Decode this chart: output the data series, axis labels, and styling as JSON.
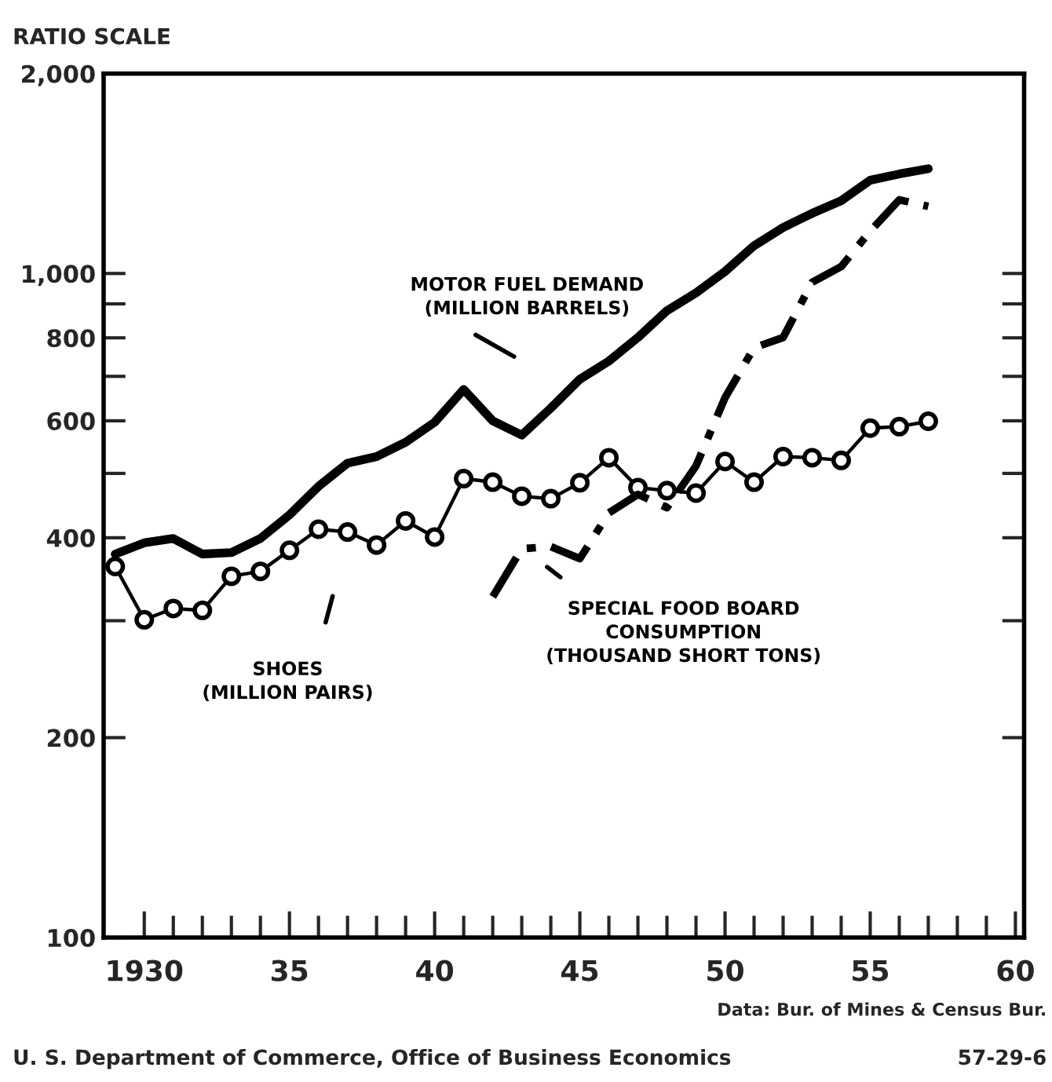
{
  "chart_data": {
    "type": "line",
    "ylabel": "RATIO SCALE",
    "log": "y",
    "grid": false,
    "legend": false,
    "xlim": [
      1928.6,
      1960.3
    ],
    "xticks": [
      {
        "value": 1930,
        "label": "1930"
      },
      {
        "value": 1931,
        "label": null
      },
      {
        "value": 1932,
        "label": null
      },
      {
        "value": 1933,
        "label": null
      },
      {
        "value": 1934,
        "label": null
      },
      {
        "value": 1935,
        "label": "35"
      },
      {
        "value": 1936,
        "label": null
      },
      {
        "value": 1937,
        "label": null
      },
      {
        "value": 1938,
        "label": null
      },
      {
        "value": 1939,
        "label": null
      },
      {
        "value": 1940,
        "label": "40"
      },
      {
        "value": 1941,
        "label": null
      },
      {
        "value": 1942,
        "label": null
      },
      {
        "value": 1943,
        "label": null
      },
      {
        "value": 1944,
        "label": null
      },
      {
        "value": 1945,
        "label": "45"
      },
      {
        "value": 1946,
        "label": null
      },
      {
        "value": 1947,
        "label": null
      },
      {
        "value": 1948,
        "label": null
      },
      {
        "value": 1949,
        "label": null
      },
      {
        "value": 1950,
        "label": "50"
      },
      {
        "value": 1951,
        "label": null
      },
      {
        "value": 1952,
        "label": null
      },
      {
        "value": 1953,
        "label": null
      },
      {
        "value": 1954,
        "label": null
      },
      {
        "value": 1955,
        "label": "55"
      },
      {
        "value": 1956,
        "label": null
      },
      {
        "value": 1957,
        "label": null
      },
      {
        "value": 1958,
        "label": null
      },
      {
        "value": 1959,
        "label": null
      },
      {
        "value": 1960,
        "label": "60"
      }
    ],
    "ylim": [
      100,
      2000
    ],
    "yticks": [
      100,
      200,
      {
        "value": 300,
        "label": null
      },
      400,
      {
        "value": 500,
        "label": null
      },
      600,
      {
        "value": 700,
        "label": null
      },
      800,
      {
        "value": 900,
        "label": null
      },
      {
        "value": 1000,
        "label": "1,000"
      },
      {
        "value": 2000,
        "label": "2,000"
      }
    ],
    "series": [
      {
        "name": "MOTOR FUEL DEMAND\n(MILLION BARRELS)",
        "color": "#000000",
        "line_style": "solid",
        "marker": "none",
        "x": [
          1929,
          1930,
          1931,
          1932,
          1933,
          1934,
          1935,
          1936,
          1937,
          1938,
          1939,
          1940,
          1941,
          1942,
          1943,
          1944,
          1945,
          1946,
          1947,
          1948,
          1949,
          1950,
          1951,
          1952,
          1953,
          1954,
          1955,
          1956,
          1957
        ],
        "values": [
          378,
          393,
          399,
          378,
          380,
          399,
          433,
          478,
          518,
          530,
          557,
          597,
          669,
          600,
          571,
          627,
          693,
          738,
          801,
          879,
          935,
          1007,
          1101,
          1173,
          1232,
          1287,
          1382,
          1412,
          1438
        ]
      },
      {
        "name": "SHOES\n(MILLION PAIRS)",
        "color": "#000000",
        "line_style": "solid",
        "marker": "circle",
        "x": [
          1929,
          1930,
          1931,
          1932,
          1933,
          1934,
          1935,
          1936,
          1937,
          1938,
          1939,
          1940,
          1941,
          1942,
          1943,
          1944,
          1945,
          1946,
          1947,
          1948,
          1949,
          1950,
          1951,
          1952,
          1953,
          1954,
          1955,
          1956,
          1957
        ],
        "values": [
          362,
          301,
          313,
          311,
          350,
          356,
          383,
          412,
          408,
          390,
          424,
          401,
          491,
          485,
          462,
          458,
          484,
          528,
          476,
          471,
          467,
          521,
          485,
          530,
          528,
          523,
          585,
          588,
          599
        ]
      },
      {
        "name": "SPECIAL FOOD BOARD\nCONSUMPTION\n(THOUSAND SHORT TONS)",
        "color": "#000000",
        "line_style": "dashdot",
        "marker": "none",
        "x": [
          1942,
          1943,
          1944,
          1945,
          1946,
          1947,
          1948,
          1949,
          1950,
          1951,
          1952,
          1953,
          1954,
          1955,
          1956,
          1957
        ],
        "values": [
          326,
          385,
          388,
          372,
          436,
          465,
          444,
          513,
          650,
          773,
          801,
          970,
          1024,
          1158,
          1291,
          1262
        ]
      }
    ],
    "annotations": [
      "Data: Bur. of Mines & Census Bur.",
      "U. S. Department of Commerce, Office of Business Economics",
      "57-29-6"
    ]
  }
}
